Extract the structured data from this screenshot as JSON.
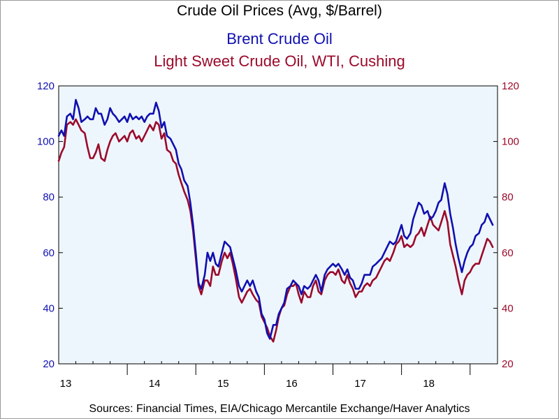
{
  "chart_data": {
    "type": "line",
    "title": "Crude Oil Prices (Avg, $/Barrel)",
    "source": "Sources:  Financial Times, EIA/Chicago Mercantile Exchange/Haver Analytics",
    "x_axis": {
      "tick_labels": [
        "13",
        "14",
        "15",
        "16",
        "17",
        "18"
      ],
      "range": [
        "2013-01",
        "2019-05"
      ]
    },
    "y_left": {
      "min": 20,
      "max": 120,
      "ticks": [
        20,
        40,
        60,
        80,
        100,
        120
      ],
      "color": "#1010b0"
    },
    "y_right": {
      "min": 20,
      "max": 120,
      "ticks": [
        20,
        40,
        60,
        80,
        100,
        120
      ],
      "color": "#9b0a2a"
    },
    "plot_background": "#eef6fd",
    "grid": false,
    "series": [
      {
        "name": "Brent Crude Oil",
        "color": "#1010b0",
        "axis": "left",
        "values": [
          [
            2013.0,
            102
          ],
          [
            2013.04,
            104
          ],
          [
            2013.08,
            102
          ],
          [
            2013.12,
            109
          ],
          [
            2013.17,
            110
          ],
          [
            2013.21,
            108
          ],
          [
            2013.25,
            115
          ],
          [
            2013.29,
            112
          ],
          [
            2013.33,
            107
          ],
          [
            2013.38,
            108
          ],
          [
            2013.42,
            109
          ],
          [
            2013.46,
            108
          ],
          [
            2013.5,
            108
          ],
          [
            2013.54,
            112
          ],
          [
            2013.58,
            110
          ],
          [
            2013.62,
            110
          ],
          [
            2013.67,
            106
          ],
          [
            2013.71,
            108
          ],
          [
            2013.75,
            112
          ],
          [
            2013.79,
            110
          ],
          [
            2013.83,
            109
          ],
          [
            2013.88,
            107
          ],
          [
            2013.92,
            108
          ],
          [
            2013.96,
            109
          ],
          [
            2014.0,
            107
          ],
          [
            2014.04,
            110
          ],
          [
            2014.08,
            108
          ],
          [
            2014.13,
            109
          ],
          [
            2014.17,
            108
          ],
          [
            2014.21,
            109
          ],
          [
            2014.25,
            107
          ],
          [
            2014.29,
            109
          ],
          [
            2014.33,
            110
          ],
          [
            2014.38,
            110
          ],
          [
            2014.42,
            114
          ],
          [
            2014.46,
            111
          ],
          [
            2014.5,
            105
          ],
          [
            2014.54,
            107
          ],
          [
            2014.58,
            102
          ],
          [
            2014.63,
            101
          ],
          [
            2014.67,
            99
          ],
          [
            2014.71,
            97
          ],
          [
            2014.75,
            92
          ],
          [
            2014.79,
            90
          ],
          [
            2014.83,
            86
          ],
          [
            2014.88,
            84
          ],
          [
            2014.92,
            78
          ],
          [
            2014.96,
            70
          ],
          [
            2015.0,
            60
          ],
          [
            2015.04,
            49
          ],
          [
            2015.08,
            47
          ],
          [
            2015.13,
            52
          ],
          [
            2015.17,
            60
          ],
          [
            2015.21,
            57
          ],
          [
            2015.25,
            60
          ],
          [
            2015.29,
            56
          ],
          [
            2015.33,
            55
          ],
          [
            2015.38,
            60
          ],
          [
            2015.42,
            64
          ],
          [
            2015.46,
            63
          ],
          [
            2015.5,
            62
          ],
          [
            2015.54,
            58
          ],
          [
            2015.58,
            54
          ],
          [
            2015.63,
            48
          ],
          [
            2015.67,
            46
          ],
          [
            2015.71,
            48
          ],
          [
            2015.75,
            50
          ],
          [
            2015.79,
            48
          ],
          [
            2015.83,
            50
          ],
          [
            2015.88,
            46
          ],
          [
            2015.92,
            44
          ],
          [
            2015.96,
            38
          ],
          [
            2016.0,
            36
          ],
          [
            2016.04,
            31
          ],
          [
            2016.08,
            29
          ],
          [
            2016.13,
            34
          ],
          [
            2016.17,
            34
          ],
          [
            2016.21,
            38
          ],
          [
            2016.25,
            40
          ],
          [
            2016.29,
            42
          ],
          [
            2016.33,
            47
          ],
          [
            2016.38,
            48
          ],
          [
            2016.42,
            50
          ],
          [
            2016.46,
            49
          ],
          [
            2016.5,
            48
          ],
          [
            2016.54,
            45
          ],
          [
            2016.58,
            48
          ],
          [
            2016.63,
            47
          ],
          [
            2016.67,
            48
          ],
          [
            2016.71,
            50
          ],
          [
            2016.75,
            52
          ],
          [
            2016.79,
            50
          ],
          [
            2016.83,
            46
          ],
          [
            2016.88,
            52
          ],
          [
            2016.92,
            54
          ],
          [
            2016.96,
            55
          ],
          [
            2017.0,
            56
          ],
          [
            2017.04,
            55
          ],
          [
            2017.08,
            56
          ],
          [
            2017.13,
            54
          ],
          [
            2017.17,
            52
          ],
          [
            2017.21,
            54
          ],
          [
            2017.25,
            51
          ],
          [
            2017.29,
            50
          ],
          [
            2017.33,
            47
          ],
          [
            2017.38,
            47
          ],
          [
            2017.42,
            49
          ],
          [
            2017.46,
            52
          ],
          [
            2017.5,
            52
          ],
          [
            2017.54,
            52
          ],
          [
            2017.58,
            55
          ],
          [
            2017.63,
            56
          ],
          [
            2017.67,
            57
          ],
          [
            2017.71,
            58
          ],
          [
            2017.75,
            60
          ],
          [
            2017.79,
            62
          ],
          [
            2017.83,
            64
          ],
          [
            2017.88,
            63
          ],
          [
            2017.92,
            64
          ],
          [
            2017.96,
            67
          ],
          [
            2018.0,
            70
          ],
          [
            2018.04,
            66
          ],
          [
            2018.08,
            65
          ],
          [
            2018.13,
            67
          ],
          [
            2018.17,
            72
          ],
          [
            2018.21,
            75
          ],
          [
            2018.25,
            78
          ],
          [
            2018.29,
            77
          ],
          [
            2018.33,
            74
          ],
          [
            2018.38,
            75
          ],
          [
            2018.42,
            72
          ],
          [
            2018.46,
            73
          ],
          [
            2018.5,
            75
          ],
          [
            2018.54,
            78
          ],
          [
            2018.58,
            79
          ],
          [
            2018.63,
            85
          ],
          [
            2018.67,
            81
          ],
          [
            2018.71,
            74
          ],
          [
            2018.75,
            69
          ],
          [
            2018.79,
            63
          ],
          [
            2018.83,
            58
          ],
          [
            2018.88,
            53
          ],
          [
            2018.92,
            57
          ],
          [
            2018.96,
            60
          ],
          [
            2019.0,
            62
          ],
          [
            2019.04,
            63
          ],
          [
            2019.08,
            66
          ],
          [
            2019.13,
            67
          ],
          [
            2019.17,
            70
          ],
          [
            2019.21,
            71
          ],
          [
            2019.25,
            74
          ],
          [
            2019.29,
            72
          ],
          [
            2019.33,
            70
          ]
        ]
      },
      {
        "name": "Light Sweet Crude Oil, WTI, Cushing",
        "color": "#9b0a2a",
        "axis": "right",
        "values": [
          [
            2013.0,
            93
          ],
          [
            2013.04,
            96
          ],
          [
            2013.08,
            98
          ],
          [
            2013.12,
            106
          ],
          [
            2013.17,
            107
          ],
          [
            2013.21,
            106
          ],
          [
            2013.25,
            108
          ],
          [
            2013.29,
            106
          ],
          [
            2013.33,
            104
          ],
          [
            2013.38,
            103
          ],
          [
            2013.42,
            98
          ],
          [
            2013.46,
            94
          ],
          [
            2013.5,
            94
          ],
          [
            2013.54,
            96
          ],
          [
            2013.58,
            99
          ],
          [
            2013.62,
            94
          ],
          [
            2013.67,
            93
          ],
          [
            2013.71,
            97
          ],
          [
            2013.75,
            100
          ],
          [
            2013.79,
            102
          ],
          [
            2013.83,
            103
          ],
          [
            2013.88,
            100
          ],
          [
            2013.92,
            101
          ],
          [
            2013.96,
            102
          ],
          [
            2014.0,
            100
          ],
          [
            2014.04,
            103
          ],
          [
            2014.08,
            104
          ],
          [
            2014.13,
            101
          ],
          [
            2014.17,
            102
          ],
          [
            2014.21,
            100
          ],
          [
            2014.25,
            102
          ],
          [
            2014.29,
            104
          ],
          [
            2014.33,
            106
          ],
          [
            2014.38,
            104
          ],
          [
            2014.42,
            107
          ],
          [
            2014.46,
            106
          ],
          [
            2014.5,
            101
          ],
          [
            2014.54,
            103
          ],
          [
            2014.58,
            97
          ],
          [
            2014.63,
            96
          ],
          [
            2014.67,
            93
          ],
          [
            2014.71,
            92
          ],
          [
            2014.75,
            88
          ],
          [
            2014.79,
            85
          ],
          [
            2014.83,
            82
          ],
          [
            2014.88,
            79
          ],
          [
            2014.92,
            75
          ],
          [
            2014.96,
            68
          ],
          [
            2015.0,
            58
          ],
          [
            2015.04,
            48
          ],
          [
            2015.08,
            45
          ],
          [
            2015.13,
            50
          ],
          [
            2015.17,
            50
          ],
          [
            2015.21,
            48
          ],
          [
            2015.25,
            55
          ],
          [
            2015.29,
            52
          ],
          [
            2015.33,
            52
          ],
          [
            2015.38,
            57
          ],
          [
            2015.42,
            60
          ],
          [
            2015.46,
            58
          ],
          [
            2015.5,
            60
          ],
          [
            2015.54,
            56
          ],
          [
            2015.58,
            51
          ],
          [
            2015.63,
            44
          ],
          [
            2015.67,
            42
          ],
          [
            2015.71,
            44
          ],
          [
            2015.75,
            46
          ],
          [
            2015.79,
            47
          ],
          [
            2015.83,
            45
          ],
          [
            2015.88,
            43
          ],
          [
            2015.92,
            42
          ],
          [
            2015.96,
            37
          ],
          [
            2016.0,
            35
          ],
          [
            2016.04,
            33
          ],
          [
            2016.08,
            30
          ],
          [
            2016.13,
            28
          ],
          [
            2016.17,
            32
          ],
          [
            2016.21,
            37
          ],
          [
            2016.25,
            40
          ],
          [
            2016.29,
            41
          ],
          [
            2016.33,
            45
          ],
          [
            2016.38,
            48
          ],
          [
            2016.42,
            48
          ],
          [
            2016.46,
            49
          ],
          [
            2016.5,
            45
          ],
          [
            2016.54,
            42
          ],
          [
            2016.58,
            46
          ],
          [
            2016.63,
            44
          ],
          [
            2016.67,
            44
          ],
          [
            2016.71,
            48
          ],
          [
            2016.75,
            50
          ],
          [
            2016.79,
            46
          ],
          [
            2016.83,
            45
          ],
          [
            2016.88,
            50
          ],
          [
            2016.92,
            52
          ],
          [
            2016.96,
            53
          ],
          [
            2017.0,
            53
          ],
          [
            2017.04,
            52
          ],
          [
            2017.08,
            54
          ],
          [
            2017.13,
            50
          ],
          [
            2017.17,
            49
          ],
          [
            2017.21,
            52
          ],
          [
            2017.25,
            49
          ],
          [
            2017.29,
            47
          ],
          [
            2017.33,
            44
          ],
          [
            2017.38,
            46
          ],
          [
            2017.42,
            46
          ],
          [
            2017.46,
            48
          ],
          [
            2017.5,
            49
          ],
          [
            2017.54,
            48
          ],
          [
            2017.58,
            50
          ],
          [
            2017.63,
            51
          ],
          [
            2017.67,
            53
          ],
          [
            2017.71,
            55
          ],
          [
            2017.75,
            57
          ],
          [
            2017.79,
            58
          ],
          [
            2017.83,
            57
          ],
          [
            2017.88,
            60
          ],
          [
            2017.92,
            63
          ],
          [
            2017.96,
            64
          ],
          [
            2018.0,
            66
          ],
          [
            2018.04,
            62
          ],
          [
            2018.08,
            63
          ],
          [
            2018.13,
            62
          ],
          [
            2018.17,
            63
          ],
          [
            2018.21,
            66
          ],
          [
            2018.25,
            67
          ],
          [
            2018.29,
            69
          ],
          [
            2018.33,
            66
          ],
          [
            2018.38,
            70
          ],
          [
            2018.42,
            73
          ],
          [
            2018.46,
            70
          ],
          [
            2018.5,
            69
          ],
          [
            2018.54,
            68
          ],
          [
            2018.58,
            71
          ],
          [
            2018.63,
            75
          ],
          [
            2018.67,
            71
          ],
          [
            2018.71,
            63
          ],
          [
            2018.75,
            59
          ],
          [
            2018.79,
            55
          ],
          [
            2018.83,
            50
          ],
          [
            2018.88,
            45
          ],
          [
            2018.92,
            50
          ],
          [
            2018.96,
            52
          ],
          [
            2019.0,
            53
          ],
          [
            2019.04,
            55
          ],
          [
            2019.08,
            56
          ],
          [
            2019.13,
            56
          ],
          [
            2019.17,
            59
          ],
          [
            2019.21,
            62
          ],
          [
            2019.25,
            65
          ],
          [
            2019.29,
            64
          ],
          [
            2019.33,
            62
          ]
        ]
      }
    ]
  }
}
